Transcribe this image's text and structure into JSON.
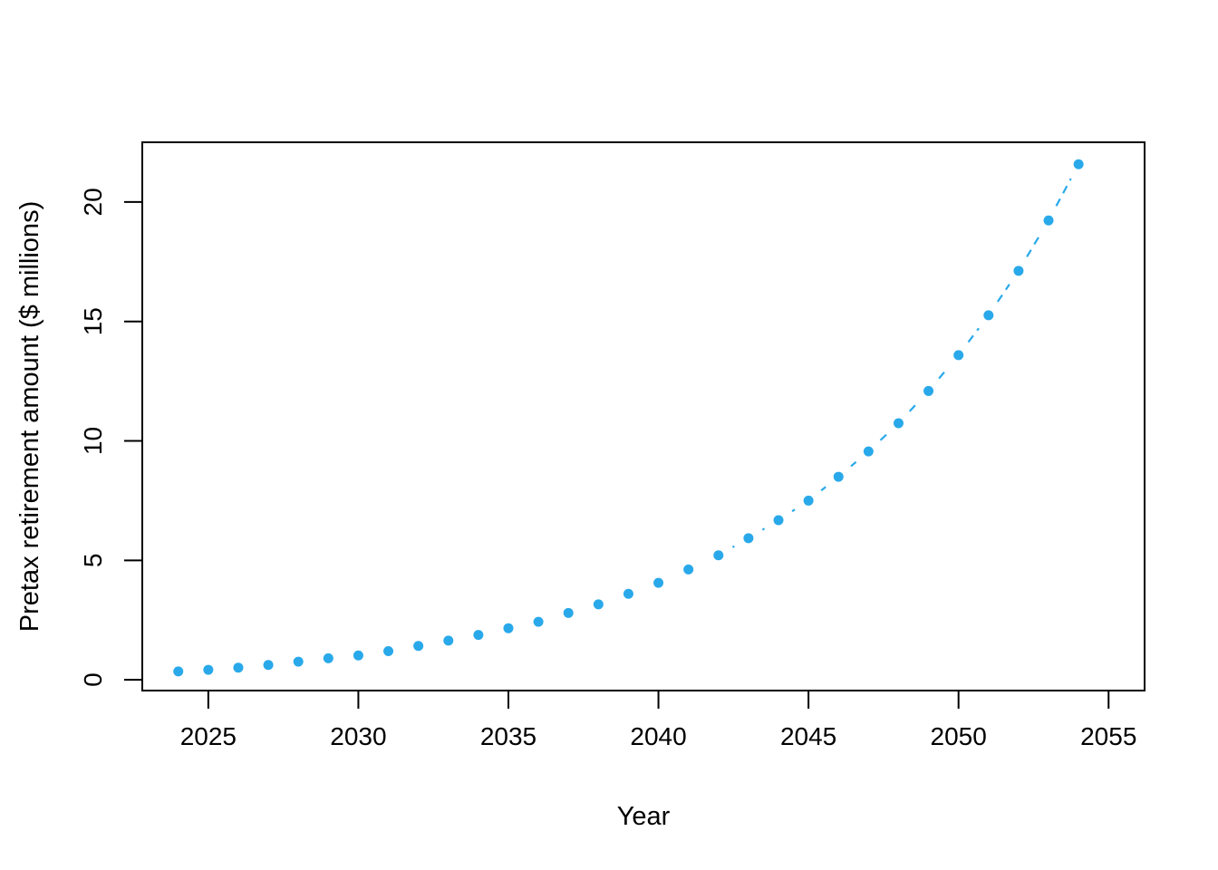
{
  "chart_data": {
    "type": "scatter",
    "mode": "points-with-dashed-line",
    "marker": "filled-circle",
    "line_style": "dashed",
    "title": "",
    "xlabel": "Year",
    "ylabel": "Pretax retirement amount ($ millions)",
    "x": [
      2024,
      2025,
      2026,
      2027,
      2028,
      2029,
      2030,
      2031,
      2032,
      2033,
      2034,
      2035,
      2036,
      2037,
      2038,
      2039,
      2040,
      2041,
      2042,
      2043,
      2044,
      2045,
      2046,
      2047,
      2048,
      2049,
      2050,
      2051,
      2052,
      2053,
      2054
    ],
    "y": [
      0.35,
      0.42,
      0.51,
      0.62,
      0.76,
      0.9,
      1.02,
      1.2,
      1.42,
      1.64,
      1.88,
      2.16,
      2.43,
      2.8,
      3.16,
      3.6,
      4.06,
      4.62,
      5.21,
      5.93,
      6.68,
      7.5,
      8.5,
      9.56,
      10.74,
      12.09,
      13.59,
      15.26,
      17.12,
      19.23,
      21.58
    ],
    "x_ticks": [
      2025,
      2030,
      2035,
      2040,
      2045,
      2050,
      2055
    ],
    "y_ticks": [
      0,
      5,
      10,
      15,
      20
    ],
    "xlim": [
      2022.8,
      2056.2
    ],
    "ylim": [
      -0.45,
      22.5
    ],
    "grid": false,
    "legend": "none",
    "point_color": "#29A9EA",
    "axis_color": "#000000",
    "background_color": "#FFFFFF"
  }
}
